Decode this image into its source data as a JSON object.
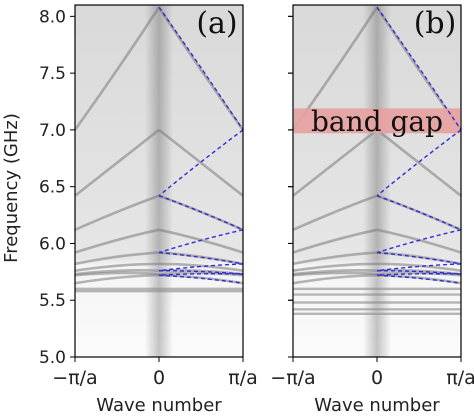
{
  "chart_data": {
    "type": "line",
    "ylabel": "Frequency (GHz)",
    "ylim": [
      5.0,
      8.1
    ],
    "yticks": [
      "5.0",
      "5.5",
      "6.0",
      "6.5",
      "7.0",
      "7.5",
      "8.0"
    ],
    "xlim": [
      -1,
      1
    ],
    "xtick_labels": [
      "−π/a",
      "0",
      "π/a"
    ],
    "panels": [
      {
        "label": "(a)",
        "xlabel": "Wave number",
        "series": [
          {
            "name": "",
            "style": "dashed",
            "color": "#2d2dd8",
            "x": [
              0,
              1,
              0,
              1,
              0,
              1,
              0,
              1,
              0,
              1
            ],
            "y": [
              8.08,
              7.0,
              6.42,
              6.12,
              5.92,
              5.82,
              5.76,
              5.73,
              5.72,
              5.65
            ]
          }
        ],
        "annotations": []
      },
      {
        "label": "(b)",
        "xlabel": "Wave number",
        "series": [
          {
            "name": "",
            "style": "dashed",
            "color": "#2d2dd8",
            "x": [
              0,
              1,
              0,
              1,
              0,
              1,
              0,
              1,
              0,
              1
            ],
            "y": [
              8.08,
              7.0,
              6.42,
              6.12,
              5.92,
              5.82,
              5.76,
              5.73,
              5.72,
              5.65
            ]
          }
        ],
        "annotations": [
          {
            "text": "band gap",
            "y_range": [
              6.97,
              7.19
            ],
            "color": "#e8a0a0"
          }
        ]
      }
    ]
  }
}
